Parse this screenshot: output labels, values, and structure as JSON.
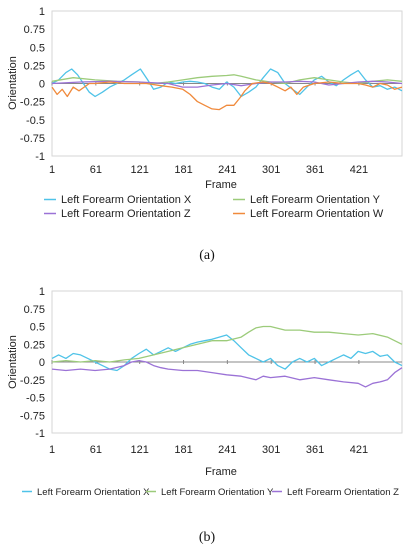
{
  "chart_data": [
    {
      "type": "line",
      "xlabel": "Frame",
      "ylabel": "Orientation",
      "xlim": [
        1,
        480
      ],
      "ylim": [
        -1,
        1
      ],
      "xticks": [
        "1",
        "61",
        "121",
        "181",
        "241",
        "301",
        "361",
        "421"
      ],
      "yticks": [
        "1",
        "0.75",
        "0.5",
        "0.25",
        "0",
        "-0.25",
        "-0.5",
        "-0.75",
        "-1"
      ],
      "caption": "(a)",
      "series": [
        {
          "name": "Left Forearm Orientation X",
          "color": "#4fc3e8",
          "points": [
            [
              1,
              0
            ],
            [
              10,
              0.05
            ],
            [
              20,
              0.15
            ],
            [
              28,
              0.2
            ],
            [
              36,
              0.12
            ],
            [
              44,
              0
            ],
            [
              52,
              -0.12
            ],
            [
              60,
              -0.18
            ],
            [
              70,
              -0.12
            ],
            [
              80,
              -0.05
            ],
            [
              90,
              0
            ],
            [
              100,
              0.05
            ],
            [
              110,
              0.12
            ],
            [
              122,
              0.2
            ],
            [
              132,
              0.05
            ],
            [
              140,
              -0.08
            ],
            [
              150,
              -0.05
            ],
            [
              160,
              0.02
            ],
            [
              170,
              0
            ],
            [
              180,
              0.02
            ],
            [
              190,
              0.03
            ],
            [
              200,
              0.02
            ],
            [
              210,
              0
            ],
            [
              220,
              -0.05
            ],
            [
              230,
              -0.08
            ],
            [
              240,
              0.02
            ],
            [
              250,
              -0.05
            ],
            [
              260,
              -0.18
            ],
            [
              270,
              -0.12
            ],
            [
              280,
              -0.05
            ],
            [
              290,
              0.08
            ],
            [
              300,
              0.2
            ],
            [
              310,
              0.15
            ],
            [
              320,
              0
            ],
            [
              330,
              -0.08
            ],
            [
              340,
              -0.15
            ],
            [
              350,
              -0.05
            ],
            [
              360,
              0.05
            ],
            [
              370,
              0.1
            ],
            [
              380,
              0.02
            ],
            [
              390,
              -0.03
            ],
            [
              400,
              0.05
            ],
            [
              410,
              0.12
            ],
            [
              420,
              0.18
            ],
            [
              430,
              0.05
            ],
            [
              440,
              -0.05
            ],
            [
              450,
              -0.03
            ],
            [
              460,
              -0.08
            ],
            [
              470,
              -0.05
            ],
            [
              480,
              -0.1
            ]
          ]
        },
        {
          "name": "Left Forearm Orientation Y",
          "color": "#9ccb7a",
          "points": [
            [
              1,
              0.03
            ],
            [
              30,
              0.08
            ],
            [
              60,
              0.05
            ],
            [
              90,
              0.03
            ],
            [
              120,
              0.02
            ],
            [
              140,
              0
            ],
            [
              160,
              0.02
            ],
            [
              180,
              0.05
            ],
            [
              200,
              0.08
            ],
            [
              220,
              0.1
            ],
            [
              240,
              0.11
            ],
            [
              250,
              0.12
            ],
            [
              260,
              0.1
            ],
            [
              280,
              0.05
            ],
            [
              300,
              0.02
            ],
            [
              320,
              0
            ],
            [
              340,
              0.05
            ],
            [
              360,
              0.08
            ],
            [
              380,
              0.05
            ],
            [
              400,
              0.02
            ],
            [
              420,
              0
            ],
            [
              440,
              0.03
            ],
            [
              460,
              0.05
            ],
            [
              480,
              0.03
            ]
          ]
        },
        {
          "name": "Left Forearm Orientation Z",
          "color": "#9b72d6",
          "points": [
            [
              1,
              0
            ],
            [
              40,
              0.02
            ],
            [
              80,
              0.03
            ],
            [
              120,
              0.02
            ],
            [
              160,
              0
            ],
            [
              180,
              -0.05
            ],
            [
              200,
              -0.05
            ],
            [
              220,
              -0.02
            ],
            [
              240,
              0
            ],
            [
              260,
              -0.03
            ],
            [
              280,
              0
            ],
            [
              300,
              0.02
            ],
            [
              320,
              0.02
            ],
            [
              340,
              0.03
            ],
            [
              360,
              0.02
            ],
            [
              380,
              -0.02
            ],
            [
              400,
              0
            ],
            [
              420,
              0.02
            ],
            [
              440,
              0.03
            ],
            [
              460,
              0.02
            ],
            [
              480,
              0
            ]
          ]
        },
        {
          "name": "Left Forearm Orientation W",
          "color": "#f08a3c",
          "points": [
            [
              1,
              -0.05
            ],
            [
              8,
              -0.15
            ],
            [
              15,
              -0.08
            ],
            [
              22,
              -0.18
            ],
            [
              30,
              -0.05
            ],
            [
              38,
              -0.1
            ],
            [
              45,
              -0.05
            ],
            [
              52,
              0
            ],
            [
              60,
              0
            ],
            [
              80,
              0.02
            ],
            [
              100,
              0
            ],
            [
              130,
              0
            ],
            [
              150,
              -0.03
            ],
            [
              165,
              -0.05
            ],
            [
              180,
              -0.08
            ],
            [
              190,
              -0.15
            ],
            [
              200,
              -0.25
            ],
            [
              210,
              -0.3
            ],
            [
              220,
              -0.35
            ],
            [
              230,
              -0.36
            ],
            [
              240,
              -0.3
            ],
            [
              250,
              -0.3
            ],
            [
              258,
              -0.2
            ],
            [
              265,
              -0.1
            ],
            [
              275,
              0
            ],
            [
              290,
              0.02
            ],
            [
              300,
              0
            ],
            [
              310,
              -0.05
            ],
            [
              320,
              -0.1
            ],
            [
              328,
              -0.05
            ],
            [
              336,
              -0.15
            ],
            [
              345,
              -0.05
            ],
            [
              360,
              0
            ],
            [
              380,
              0.02
            ],
            [
              400,
              0
            ],
            [
              420,
              0
            ],
            [
              430,
              -0.02
            ],
            [
              440,
              -0.05
            ],
            [
              450,
              0
            ],
            [
              460,
              -0.02
            ],
            [
              470,
              -0.08
            ],
            [
              480,
              -0.05
            ]
          ]
        }
      ]
    },
    {
      "type": "line",
      "xlabel": "Frame",
      "ylabel": "Orientation",
      "xlim": [
        1,
        480
      ],
      "ylim": [
        -1,
        1
      ],
      "xticks": [
        "1",
        "61",
        "121",
        "181",
        "241",
        "301",
        "361",
        "421"
      ],
      "yticks": [
        "1",
        "0.75",
        "0.5",
        "0.25",
        "0",
        "-0.25",
        "-0.5",
        "-0.75",
        "-1"
      ],
      "caption": "(b)",
      "series": [
        {
          "name": "Left Forearm Orientation X",
          "color": "#4fc3e8",
          "points": [
            [
              1,
              0.05
            ],
            [
              10,
              0.1
            ],
            [
              20,
              0.05
            ],
            [
              30,
              0.12
            ],
            [
              40,
              0.1
            ],
            [
              50,
              0.05
            ],
            [
              60,
              0
            ],
            [
              70,
              -0.05
            ],
            [
              80,
              -0.1
            ],
            [
              90,
              -0.12
            ],
            [
              100,
              -0.05
            ],
            [
              110,
              0.05
            ],
            [
              120,
              0.12
            ],
            [
              130,
              0.18
            ],
            [
              140,
              0.1
            ],
            [
              150,
              0.15
            ],
            [
              160,
              0.2
            ],
            [
              170,
              0.15
            ],
            [
              180,
              0.2
            ],
            [
              190,
              0.25
            ],
            [
              200,
              0.28
            ],
            [
              210,
              0.3
            ],
            [
              220,
              0.32
            ],
            [
              230,
              0.35
            ],
            [
              240,
              0.38
            ],
            [
              250,
              0.3
            ],
            [
              260,
              0.2
            ],
            [
              270,
              0.1
            ],
            [
              280,
              0.05
            ],
            [
              290,
              0
            ],
            [
              300,
              0.05
            ],
            [
              310,
              -0.05
            ],
            [
              320,
              -0.1
            ],
            [
              330,
              0
            ],
            [
              340,
              0.05
            ],
            [
              350,
              0
            ],
            [
              360,
              0.05
            ],
            [
              370,
              -0.05
            ],
            [
              380,
              0
            ],
            [
              390,
              0.05
            ],
            [
              400,
              0.1
            ],
            [
              410,
              0.05
            ],
            [
              420,
              0.15
            ],
            [
              430,
              0.12
            ],
            [
              440,
              0.15
            ],
            [
              450,
              0.08
            ],
            [
              460,
              0.1
            ],
            [
              470,
              0
            ],
            [
              480,
              -0.05
            ]
          ]
        },
        {
          "name": "Left Forearm Orientation Y",
          "color": "#9ccb7a",
          "points": [
            [
              1,
              0
            ],
            [
              20,
              0.02
            ],
            [
              40,
              0
            ],
            [
              60,
              0.02
            ],
            [
              80,
              0
            ],
            [
              100,
              0.03
            ],
            [
              120,
              0.05
            ],
            [
              140,
              0.1
            ],
            [
              160,
              0.15
            ],
            [
              180,
              0.2
            ],
            [
              200,
              0.25
            ],
            [
              220,
              0.3
            ],
            [
              240,
              0.3
            ],
            [
              260,
              0.35
            ],
            [
              270,
              0.42
            ],
            [
              280,
              0.48
            ],
            [
              290,
              0.5
            ],
            [
              300,
              0.5
            ],
            [
              320,
              0.45
            ],
            [
              340,
              0.45
            ],
            [
              360,
              0.42
            ],
            [
              380,
              0.42
            ],
            [
              400,
              0.4
            ],
            [
              420,
              0.38
            ],
            [
              440,
              0.4
            ],
            [
              460,
              0.35
            ],
            [
              470,
              0.3
            ],
            [
              480,
              0.25
            ]
          ]
        },
        {
          "name": "Left Forearm Orientation Z",
          "color": "#9b72d6",
          "points": [
            [
              1,
              -0.1
            ],
            [
              20,
              -0.12
            ],
            [
              40,
              -0.1
            ],
            [
              60,
              -0.12
            ],
            [
              80,
              -0.1
            ],
            [
              100,
              -0.05
            ],
            [
              110,
              0
            ],
            [
              120,
              0.02
            ],
            [
              130,
              0
            ],
            [
              140,
              -0.05
            ],
            [
              150,
              -0.08
            ],
            [
              160,
              -0.1
            ],
            [
              180,
              -0.12
            ],
            [
              200,
              -0.12
            ],
            [
              220,
              -0.15
            ],
            [
              240,
              -0.18
            ],
            [
              260,
              -0.2
            ],
            [
              280,
              -0.25
            ],
            [
              290,
              -0.2
            ],
            [
              300,
              -0.22
            ],
            [
              320,
              -0.2
            ],
            [
              340,
              -0.25
            ],
            [
              360,
              -0.22
            ],
            [
              380,
              -0.25
            ],
            [
              400,
              -0.28
            ],
            [
              420,
              -0.3
            ],
            [
              430,
              -0.35
            ],
            [
              440,
              -0.3
            ],
            [
              450,
              -0.28
            ],
            [
              460,
              -0.25
            ],
            [
              470,
              -0.15
            ],
            [
              480,
              -0.08
            ]
          ]
        }
      ]
    }
  ]
}
